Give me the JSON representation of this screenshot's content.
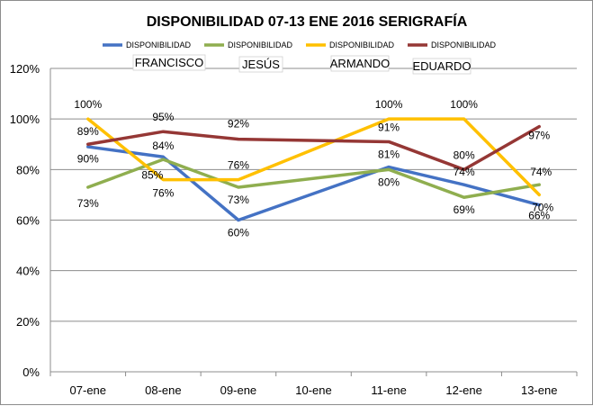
{
  "chart_data": {
    "type": "line",
    "title": "DISPONIBILIDAD 07-13 ENE 2016 SERIGRAFÍA",
    "xlabel": "",
    "ylabel": "",
    "categories": [
      "07-ene",
      "08-ene",
      "09-ene",
      "10-ene",
      "11-ene",
      "12-ene",
      "13-ene"
    ],
    "ylim": [
      0,
      120
    ],
    "yticks": [
      "0%",
      "20%",
      "40%",
      "60%",
      "80%",
      "100%",
      "120%"
    ],
    "grid": true,
    "series": [
      {
        "name": "DISPONIBILIDAD",
        "owner": "FRANCISCO",
        "color": "#4472c4",
        "values": [
          89,
          85,
          60,
          null,
          81,
          74,
          66
        ],
        "labels": [
          "89%",
          "85%",
          "60%",
          "",
          "81%",
          "74%",
          "66%"
        ]
      },
      {
        "name": "DISPONIBILIDAD",
        "owner": "JESÚS",
        "color": "#8fae4f",
        "values": [
          73,
          84,
          73,
          null,
          80,
          69,
          74
        ],
        "labels": [
          "73%",
          "84%",
          "73%",
          "",
          "80%",
          "69%",
          "74%"
        ]
      },
      {
        "name": "DISPONIBILIDAD",
        "owner": "ARMANDO",
        "color": "#ffc000",
        "values": [
          100,
          76,
          76,
          null,
          100,
          100,
          70
        ],
        "labels": [
          "100%",
          "76%",
          "76%",
          "",
          "100%",
          "100%",
          "70%"
        ]
      },
      {
        "name": "DISPONIBILIDAD",
        "owner": "EDUARDO",
        "color": "#953735",
        "values": [
          90,
          95,
          92,
          null,
          91,
          80,
          97
        ],
        "labels": [
          "90%",
          "95%",
          "92%",
          "",
          "91%",
          "80%",
          "97%"
        ]
      }
    ]
  }
}
